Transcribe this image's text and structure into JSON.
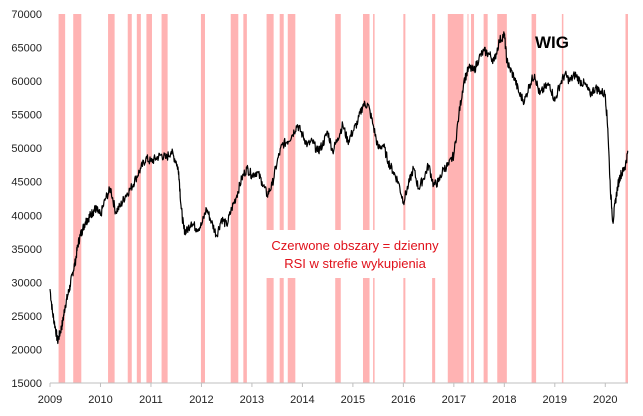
{
  "chart_data": {
    "type": "line",
    "title": "WIG",
    "annotation": [
      "Czerwone obszary = dzienny",
      "RSI w strefie wykupienia"
    ],
    "xlabel": "",
    "ylabel": "",
    "x_tick_labels": [
      "2009",
      "2010",
      "2011",
      "2012",
      "2013",
      "2014",
      "2015",
      "2016",
      "2017",
      "2018",
      "2019",
      "2020"
    ],
    "y_tick_labels": [
      "15000",
      "20000",
      "25000",
      "30000",
      "35000",
      "40000",
      "45000",
      "50000",
      "55000",
      "60000",
      "65000",
      "70000"
    ],
    "xlim": [
      2009.0,
      2020.45
    ],
    "ylim": [
      15000,
      70000
    ],
    "grid": false,
    "colors": {
      "line": "#000000",
      "shade": "#ffb3b3",
      "annotation": "#e0101a"
    },
    "shaded_periods": [
      [
        2009.17,
        2009.3
      ],
      [
        2009.46,
        2009.62
      ],
      [
        2010.15,
        2010.28
      ],
      [
        2010.54,
        2010.62
      ],
      [
        2010.72,
        2010.8
      ],
      [
        2010.91,
        2011.02
      ],
      [
        2011.21,
        2011.33
      ],
      [
        2011.99,
        2012.07
      ],
      [
        2012.58,
        2012.73
      ],
      [
        2012.83,
        2012.9
      ],
      [
        2013.29,
        2013.43
      ],
      [
        2013.55,
        2013.63
      ],
      [
        2013.71,
        2013.86
      ],
      [
        2014.65,
        2014.76
      ],
      [
        2015.2,
        2015.33
      ],
      [
        2015.4,
        2015.43
      ],
      [
        2016.0,
        2016.04
      ],
      [
        2016.57,
        2016.63
      ],
      [
        2016.88,
        2017.19
      ],
      [
        2017.27,
        2017.29
      ],
      [
        2017.34,
        2017.4
      ],
      [
        2017.59,
        2017.67
      ],
      [
        2017.86,
        2018.05
      ],
      [
        2018.54,
        2018.63
      ],
      [
        2019.14,
        2019.17
      ],
      [
        2020.4,
        2020.45
      ]
    ],
    "series": [
      {
        "x": [
          2009.0,
          2009.05,
          2009.1,
          2009.15,
          2009.2,
          2009.25,
          2009.3,
          2009.35,
          2009.4,
          2009.45,
          2009.5,
          2009.55,
          2009.6,
          2009.65,
          2009.7,
          2009.75,
          2009.8,
          2009.85,
          2009.9,
          2009.95,
          2010.0,
          2010.1,
          2010.2,
          2010.3,
          2010.4,
          2010.5,
          2010.6,
          2010.7,
          2010.8,
          2010.9,
          2011.0,
          2011.1,
          2011.2,
          2011.3,
          2011.4,
          2011.5,
          2011.55,
          2011.6,
          2011.65,
          2011.7,
          2011.8,
          2011.9,
          2012.0,
          2012.1,
          2012.2,
          2012.3,
          2012.4,
          2012.5,
          2012.6,
          2012.7,
          2012.8,
          2012.9,
          2013.0,
          2013.1,
          2013.2,
          2013.3,
          2013.4,
          2013.5,
          2013.6,
          2013.7,
          2013.8,
          2013.9,
          2014.0,
          2014.1,
          2014.2,
          2014.3,
          2014.4,
          2014.5,
          2014.6,
          2014.7,
          2014.8,
          2014.9,
          2015.0,
          2015.1,
          2015.2,
          2015.3,
          2015.4,
          2015.5,
          2015.6,
          2015.7,
          2015.8,
          2015.9,
          2016.0,
          2016.1,
          2016.2,
          2016.3,
          2016.4,
          2016.5,
          2016.6,
          2016.7,
          2016.8,
          2016.9,
          2017.0,
          2017.1,
          2017.2,
          2017.3,
          2017.4,
          2017.5,
          2017.6,
          2017.7,
          2017.8,
          2017.9,
          2018.0,
          2018.05,
          2018.1,
          2018.2,
          2018.3,
          2018.4,
          2018.5,
          2018.6,
          2018.7,
          2018.8,
          2018.9,
          2019.0,
          2019.1,
          2019.2,
          2019.3,
          2019.4,
          2019.5,
          2019.6,
          2019.7,
          2019.8,
          2019.9,
          2020.0,
          2020.05,
          2020.1,
          2020.15,
          2020.2,
          2020.25,
          2020.3,
          2020.35,
          2020.4,
          2020.45
        ],
        "y": [
          29000,
          25500,
          23500,
          21200,
          22500,
          24000,
          26500,
          28000,
          29500,
          31500,
          33000,
          35500,
          37000,
          38000,
          39000,
          39500,
          40000,
          40500,
          41000,
          40500,
          40000,
          42500,
          44000,
          40500,
          41500,
          43000,
          44000,
          45500,
          47000,
          48500,
          48000,
          48500,
          49000,
          48500,
          49500,
          48000,
          46500,
          41000,
          38000,
          37500,
          39000,
          38000,
          38500,
          41000,
          39000,
          37000,
          39500,
          38500,
          41000,
          43000,
          45500,
          47000,
          46000,
          46500,
          45000,
          43000,
          44500,
          48000,
          50500,
          51000,
          52000,
          53500,
          52000,
          50500,
          51000,
          49500,
          50500,
          52500,
          49500,
          51500,
          53500,
          51000,
          52500,
          54000,
          56500,
          56500,
          53500,
          50000,
          50500,
          48000,
          46500,
          45000,
          42000,
          44500,
          47000,
          44000,
          45500,
          47500,
          44500,
          45000,
          47000,
          47500,
          49000,
          55000,
          60000,
          62000,
          61500,
          63500,
          64500,
          64000,
          63000,
          66000,
          67000,
          63000,
          62000,
          60500,
          58000,
          57000,
          59500,
          61000,
          58000,
          59000,
          59500,
          57000,
          59500,
          61000,
          60000,
          61000,
          60000,
          59500,
          58000,
          59000,
          58500,
          58000,
          53000,
          44000,
          39000,
          42000,
          44500,
          46000,
          46500,
          47500,
          49500
        ]
      }
    ]
  }
}
